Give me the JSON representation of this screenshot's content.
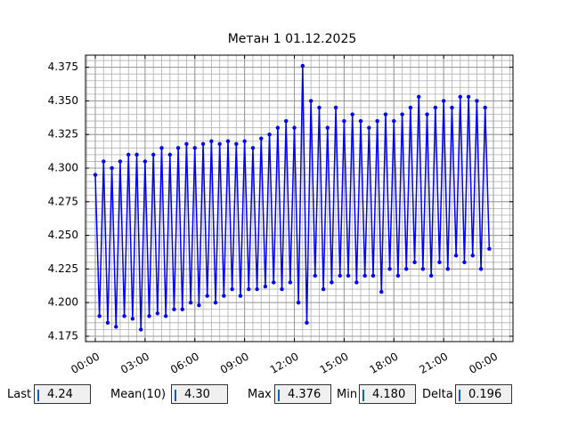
{
  "chart_data": {
    "type": "line",
    "title": "Метан 1 01.12.2025",
    "color": "#0000ff",
    "x": [
      0,
      0.25,
      0.5,
      0.75,
      1,
      1.25,
      1.5,
      1.75,
      2,
      2.25,
      2.5,
      2.75,
      3,
      3.25,
      3.5,
      3.75,
      4,
      4.25,
      4.5,
      4.75,
      5,
      5.25,
      5.5,
      5.75,
      6,
      6.25,
      6.5,
      6.75,
      7,
      7.25,
      7.5,
      7.75,
      8,
      8.25,
      8.5,
      8.75,
      9,
      9.25,
      9.5,
      9.75,
      10,
      10.25,
      10.5,
      10.75,
      11,
      11.25,
      11.5,
      11.75,
      12,
      12.25,
      12.5,
      12.75,
      13,
      13.25,
      13.5,
      13.75,
      14,
      14.25,
      14.5,
      14.75,
      15,
      15.25,
      15.5,
      15.75,
      16,
      16.25,
      16.5,
      16.75,
      17,
      17.25,
      17.5,
      17.75,
      18,
      18.25,
      18.5,
      18.75,
      19,
      19.25,
      19.5,
      19.75,
      20,
      20.25,
      20.5,
      20.75,
      21,
      21.25,
      21.5,
      21.75,
      22,
      22.25,
      22.5,
      22.75,
      23,
      23.25,
      23.5,
      23.75
    ],
    "values": [
      4.295,
      4.19,
      4.305,
      4.185,
      4.3,
      4.182,
      4.305,
      4.19,
      4.31,
      4.188,
      4.31,
      4.18,
      4.305,
      4.19,
      4.31,
      4.192,
      4.315,
      4.19,
      4.31,
      4.195,
      4.315,
      4.195,
      4.318,
      4.2,
      4.315,
      4.198,
      4.318,
      4.205,
      4.32,
      4.2,
      4.318,
      4.205,
      4.32,
      4.21,
      4.318,
      4.205,
      4.32,
      4.21,
      4.315,
      4.21,
      4.322,
      4.212,
      4.325,
      4.215,
      4.33,
      4.21,
      4.335,
      4.215,
      4.33,
      4.2,
      4.376,
      4.185,
      4.35,
      4.22,
      4.345,
      4.21,
      4.33,
      4.215,
      4.345,
      4.22,
      4.335,
      4.22,
      4.34,
      4.215,
      4.335,
      4.22,
      4.33,
      4.22,
      4.335,
      4.208,
      4.34,
      4.225,
      4.335,
      4.22,
      4.34,
      4.225,
      4.345,
      4.23,
      4.353,
      4.225,
      4.34,
      4.22,
      4.345,
      4.23,
      4.35,
      4.225,
      4.345,
      4.235,
      4.353,
      4.23,
      4.353,
      4.235,
      4.35,
      4.225,
      4.345,
      4.24
    ],
    "xlim": [
      -0.59,
      25.18
    ],
    "xticks": [
      {
        "value": 0,
        "label": "00:00"
      },
      {
        "value": 3,
        "label": "03:00"
      },
      {
        "value": 6,
        "label": "06:00"
      },
      {
        "value": 9,
        "label": "09:00"
      },
      {
        "value": 12,
        "label": "12:00"
      },
      {
        "value": 15,
        "label": "15:00"
      },
      {
        "value": 18,
        "label": "18:00"
      },
      {
        "value": 21,
        "label": "21:00"
      },
      {
        "value": 24,
        "label": "00:00"
      }
    ],
    "ylim": [
      4.171,
      4.384
    ],
    "yticks": [
      4.175,
      {
        "value": 4.2,
        "label": "4.200"
      },
      4.225,
      {
        "value": 4.25,
        "label": "4.250"
      },
      4.275,
      {
        "value": 4.3,
        "label": "4.300"
      },
      4.325,
      {
        "value": 4.35,
        "label": "4.350"
      },
      4.375
    ],
    "grid": true,
    "minor_xstep": 0.5,
    "minor_ystep": 0.005
  },
  "stats": [
    {
      "label": "Last",
      "value": "4.24"
    },
    {
      "label": "Mean(10)",
      "value": "4.30"
    },
    {
      "label": "Max",
      "value": "4.376"
    },
    {
      "label": "Min",
      "value": "4.180"
    },
    {
      "label": "Delta",
      "value": "0.196"
    }
  ]
}
